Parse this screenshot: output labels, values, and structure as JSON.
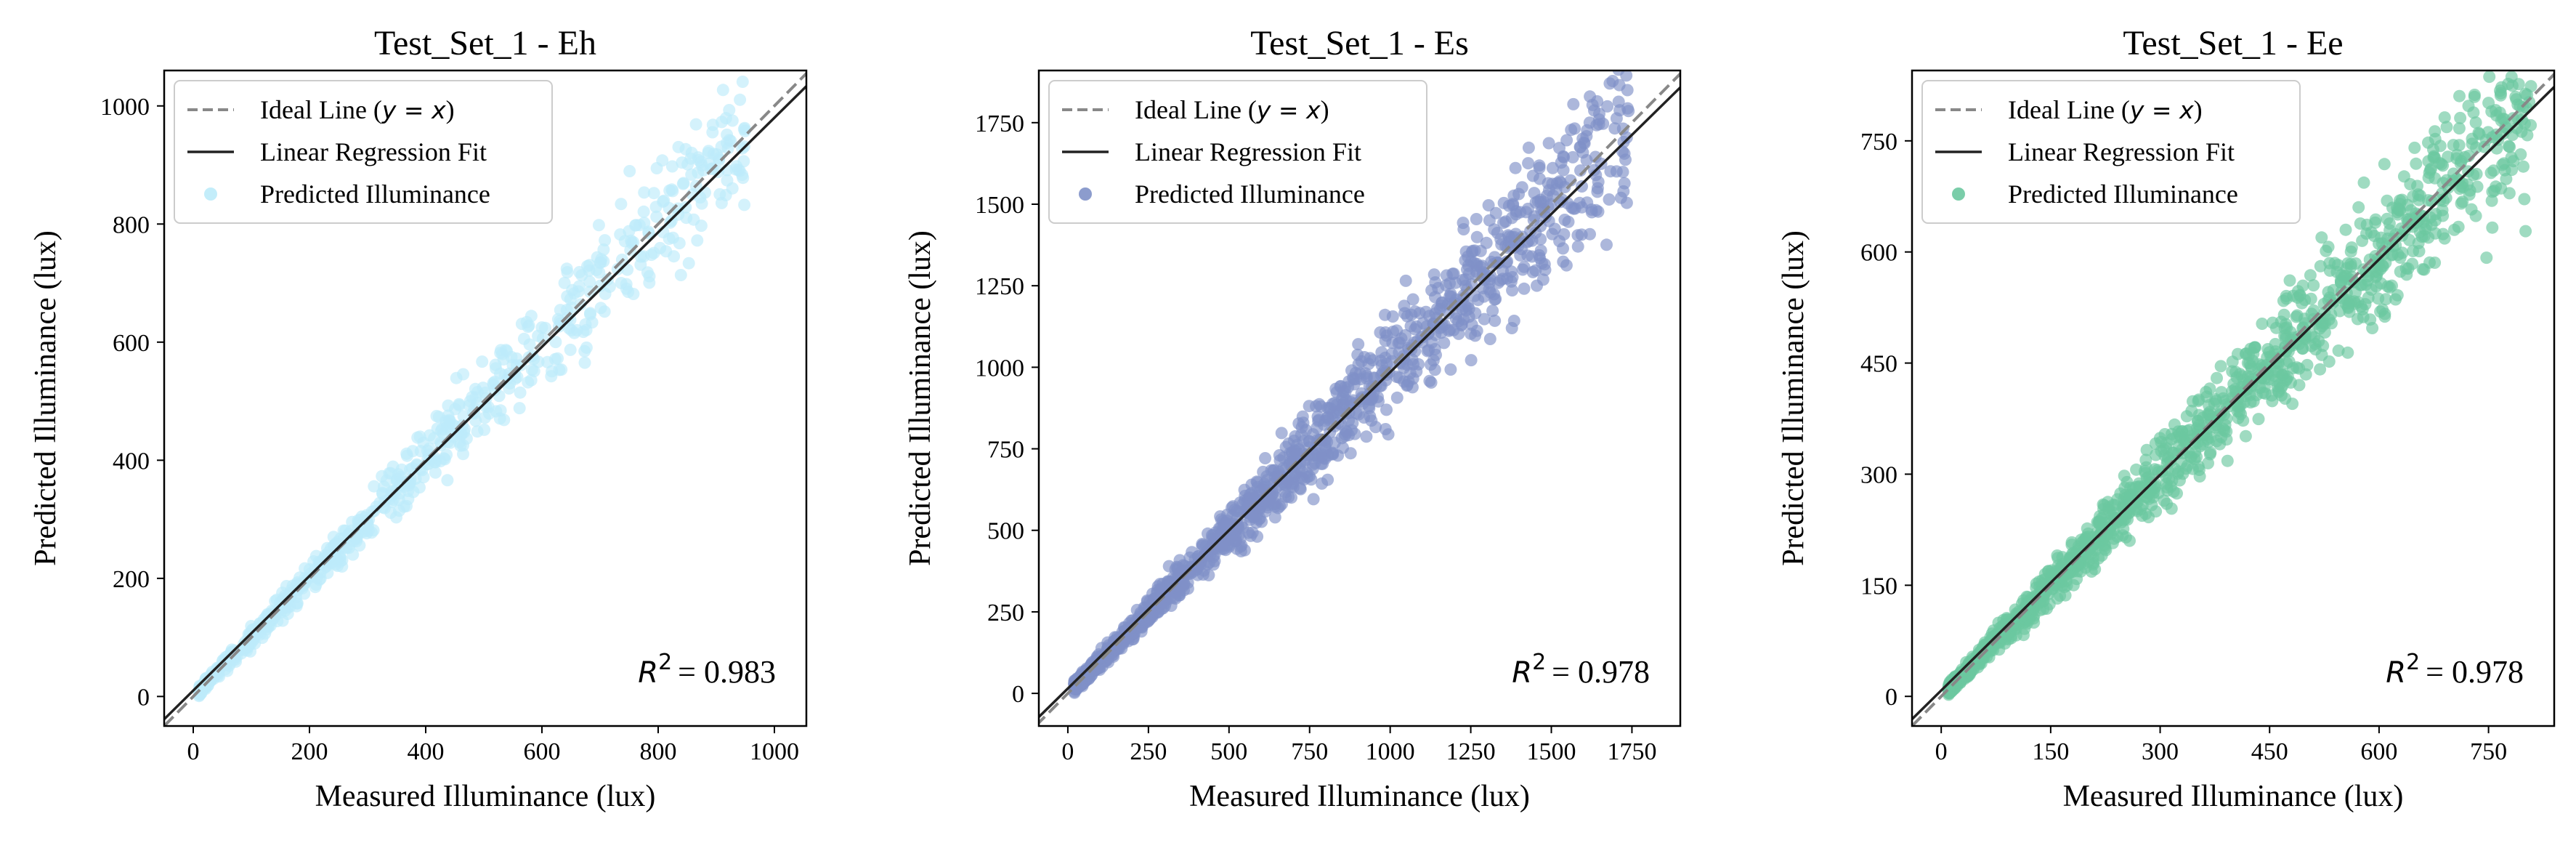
{
  "chart_data": [
    {
      "type": "scatter",
      "title": "Test_Set_1 - Eh",
      "xlabel": "Measured Illuminance (lux)",
      "ylabel": "Predicted Illuminance (lux)",
      "xlim": [
        -50,
        1055
      ],
      "ylim": [
        -50,
        1060
      ],
      "xticks": [
        0,
        200,
        400,
        600,
        800,
        1000
      ],
      "yticks": [
        0,
        200,
        400,
        600,
        800,
        1000
      ],
      "color": "#BDEBFA",
      "legend": {
        "position": "top-left",
        "ideal_prefix": "Ideal Line (",
        "ideal_math": "y = x",
        "ideal_suffix": ")",
        "fit": "Linear Regression Fit",
        "points": "Predicted Illuminance"
      },
      "r2_label": "R",
      "r2_exp": "2",
      "r2_value": "= 0.983",
      "fit_line": {
        "slope": 0.97,
        "intercept": 10
      },
      "points": {
        "x_min": 10,
        "x_max": 950,
        "n": 700,
        "noise": 0.065,
        "seed": 11
      }
    },
    {
      "type": "scatter",
      "title": "Test_Set_1 - Es",
      "xlabel": "Measured Illuminance (lux)",
      "ylabel": "Predicted Illuminance (lux)",
      "xlim": [
        -90,
        1900
      ],
      "ylim": [
        -100,
        1910
      ],
      "xticks": [
        0,
        250,
        500,
        750,
        1000,
        1250,
        1500,
        1750
      ],
      "yticks": [
        0,
        250,
        500,
        750,
        1000,
        1250,
        1500,
        1750
      ],
      "color": "#8091C8",
      "legend": {
        "position": "top-left",
        "ideal_prefix": "Ideal Line (",
        "ideal_math": "y = x",
        "ideal_suffix": ")",
        "fit": "Linear Regression Fit",
        "points": "Predicted Illuminance"
      },
      "r2_label": "R",
      "r2_exp": "2",
      "r2_value": "= 0.978",
      "fit_line": {
        "slope": 0.97,
        "intercept": 15
      },
      "points": {
        "x_min": 20,
        "x_max": 1740,
        "n": 1300,
        "noise": 0.075,
        "seed": 23
      }
    },
    {
      "type": "scatter",
      "title": "Test_Set_1 - Ee",
      "xlabel": "Measured Illuminance (lux)",
      "ylabel": "Predicted Illuminance (lux)",
      "xlim": [
        -40,
        840
      ],
      "ylim": [
        -40,
        845
      ],
      "xticks": [
        0,
        150,
        300,
        450,
        600,
        750
      ],
      "yticks": [
        0,
        150,
        300,
        450,
        600,
        750
      ],
      "color": "#6CC8A0",
      "legend": {
        "position": "top-left",
        "ideal_prefix": "Ideal Line (",
        "ideal_math": "y = x",
        "ideal_suffix": ")",
        "fit": "Linear Regression Fit",
        "points": "Predicted Illuminance"
      },
      "r2_label": "R",
      "r2_exp": "2",
      "r2_value": "= 0.978",
      "fit_line": {
        "slope": 0.97,
        "intercept": 8
      },
      "points": {
        "x_min": 10,
        "x_max": 810,
        "n": 1300,
        "noise": 0.075,
        "seed": 37
      }
    }
  ]
}
